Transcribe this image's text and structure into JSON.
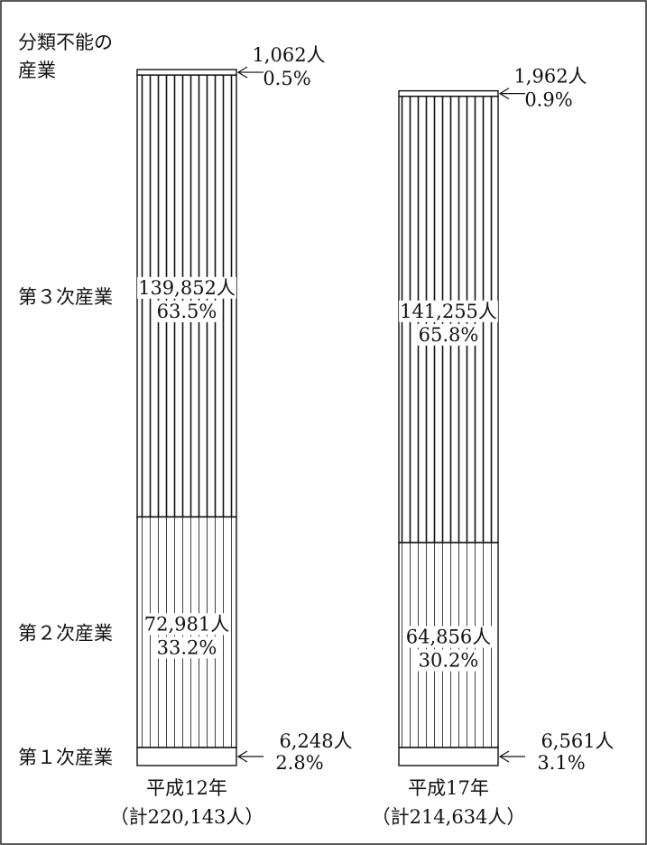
{
  "chart_data": {
    "type": "bar",
    "stacked": true,
    "categories": [
      {
        "year": "平成12年",
        "total": "（計220,143人）"
      },
      {
        "year": "平成17年",
        "total": "（計214,634人）"
      }
    ],
    "segments": [
      {
        "key": "primary",
        "label": "第１次産業"
      },
      {
        "key": "secondary",
        "label": "第２次産業"
      },
      {
        "key": "tertiary",
        "label": "第３次産業"
      },
      {
        "key": "unclassified",
        "label": "分類不能の\n産業"
      }
    ],
    "series": [
      {
        "name": "第１次産業",
        "values": [
          6248,
          6561
        ],
        "value_labels": [
          "6,248人",
          "6,561人"
        ],
        "percents": [
          2.8,
          3.1
        ],
        "percent_labels": [
          "2.8%",
          "3.1%"
        ]
      },
      {
        "name": "第２次産業",
        "values": [
          72981,
          64856
        ],
        "value_labels": [
          "72,981人",
          "64,856人"
        ],
        "percents": [
          33.2,
          30.2
        ],
        "percent_labels": [
          "33.2%",
          "30.2%"
        ]
      },
      {
        "name": "第３次産業",
        "values": [
          139852,
          141255
        ],
        "value_labels": [
          "139,852人",
          "141,255人"
        ],
        "percents": [
          63.5,
          65.8
        ],
        "percent_labels": [
          "63.5%",
          "65.8%"
        ]
      },
      {
        "name": "分類不能の産業",
        "values": [
          1062,
          1962
        ],
        "value_labels": [
          "1,062人",
          "1,962人"
        ],
        "percents": [
          0.5,
          0.9
        ],
        "percent_labels": [
          "0.5%",
          "0.9%"
        ]
      }
    ]
  }
}
